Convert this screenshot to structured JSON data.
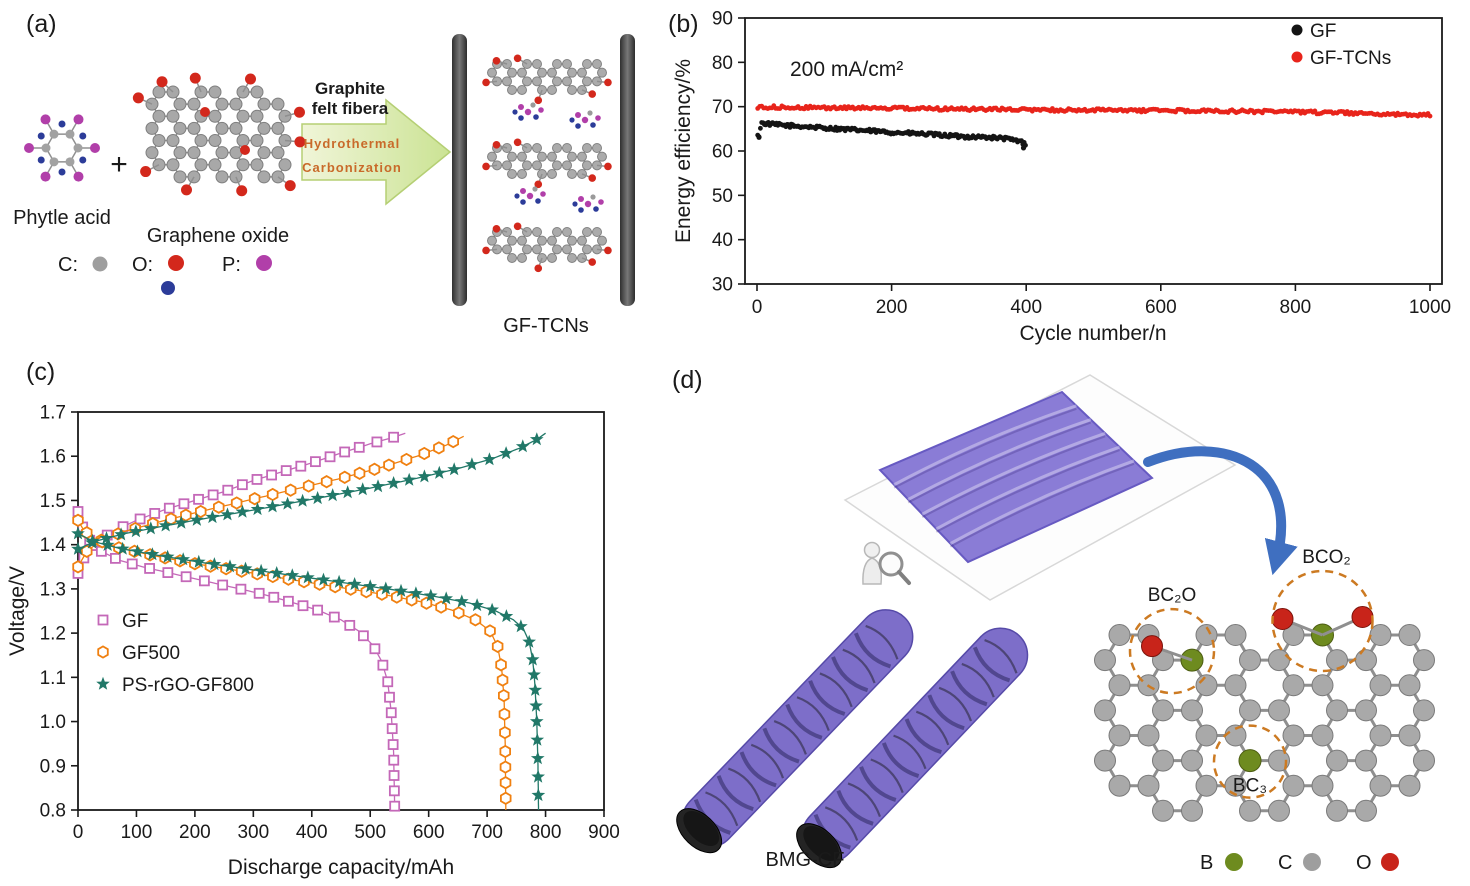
{
  "panel_a": {
    "label": "(a)",
    "reactant1_label": "Phytle acid",
    "plus": "+",
    "reactant2_label": "Graphene oxide",
    "arrow_caption_line1": "Graphite",
    "arrow_caption_line2": "felt fibera",
    "arrow_step1": "Hydrothermal",
    "arrow_step2": "Carbonization",
    "product_label": "GF-TCNs",
    "atom_legend": {
      "c_label": "C:",
      "c_color": "#9e9e9e",
      "o_label": "O:",
      "o_color": "#d3281c",
      "o_color2": "#2c3c99",
      "p_label": "P:",
      "p_color": "#b13fa9"
    }
  },
  "panel_d": {
    "label": "(d)",
    "object_label": "BMG-CF",
    "site1": "BC₂O",
    "site2": "BCO₂",
    "site3": "BC₃",
    "atom_legend": {
      "b_label": "B",
      "b_color": "#6e8b1f",
      "c_label": "C",
      "c_color": "#9e9e9e",
      "o_label": "O",
      "o_color": "#c8241a"
    }
  },
  "chart_data": [
    {
      "id": "b",
      "panel_label": "(b)",
      "type": "scatter",
      "xlabel": "Cycle number/n",
      "ylabel": "Energy efficiency/%",
      "annotation": "200 mA/cm²",
      "xlim": [
        0,
        1000
      ],
      "ylim": [
        30,
        90
      ],
      "xticks": [
        "0",
        "200",
        "400",
        "600",
        "800",
        "1000"
      ],
      "yticks": [
        "30",
        "40",
        "50",
        "60",
        "70",
        "80",
        "90"
      ],
      "grid": false,
      "legend_position": "top-right",
      "series": [
        {
          "name": "GF",
          "color": "#141414",
          "marker": "circle",
          "point_step": 2,
          "scatter_band": 0.8,
          "trend": [
            [
              1,
              63.3
            ],
            [
              3,
              63.5
            ],
            [
              6,
              66.3
            ],
            [
              30,
              65.9
            ],
            [
              60,
              65.6
            ],
            [
              100,
              65.2
            ],
            [
              150,
              64.7
            ],
            [
              200,
              64.2
            ],
            [
              250,
              63.8
            ],
            [
              300,
              63.3
            ],
            [
              340,
              63.1
            ],
            [
              370,
              62.8
            ],
            [
              390,
              62.2
            ],
            [
              400,
              61.6
            ]
          ],
          "extra_points": [
            [
              3,
              63.1
            ],
            [
              396,
              60.7
            ]
          ]
        },
        {
          "name": "GF-TCNs",
          "color": "#e8241b",
          "marker": "circle",
          "point_step": 3,
          "scatter_band": 0.7,
          "trend": [
            [
              1,
              69.9
            ],
            [
              100,
              69.8
            ],
            [
              200,
              69.6
            ],
            [
              300,
              69.5
            ],
            [
              400,
              69.3
            ],
            [
              500,
              69.2
            ],
            [
              600,
              69.1
            ],
            [
              700,
              69.0
            ],
            [
              800,
              68.8
            ],
            [
              900,
              68.5
            ],
            [
              1000,
              68.1
            ]
          ],
          "extra_points": []
        }
      ]
    },
    {
      "id": "c",
      "panel_label": "(c)",
      "type": "line",
      "xlabel": "Discharge capacity/mAh",
      "ylabel": "Voltage/V",
      "xlim": [
        0,
        900
      ],
      "ylim": [
        0.8,
        1.7
      ],
      "xticks": [
        "0",
        "100",
        "200",
        "300",
        "400",
        "500",
        "600",
        "700",
        "800",
        "900"
      ],
      "yticks": [
        "0.8",
        "0.9",
        "1.0",
        "1.1",
        "1.2",
        "1.3",
        "1.4",
        "1.5",
        "1.6",
        "1.7"
      ],
      "grid": false,
      "legend_position": "center-left",
      "series": [
        {
          "name": "GF",
          "color": "#c468b8",
          "marker": "square",
          "charge": [
            [
              0,
              1.335
            ],
            [
              10,
              1.37
            ],
            [
              30,
              1.405
            ],
            [
              60,
              1.43
            ],
            [
              100,
              1.455
            ],
            [
              150,
              1.48
            ],
            [
              200,
              1.5
            ],
            [
              250,
              1.52
            ],
            [
              300,
              1.545
            ],
            [
              350,
              1.565
            ],
            [
              400,
              1.585
            ],
            [
              450,
              1.607
            ],
            [
              500,
              1.628
            ],
            [
              540,
              1.643
            ],
            [
              560,
              1.652
            ]
          ],
          "discharge": [
            [
              0,
              1.475
            ],
            [
              8,
              1.44
            ],
            [
              20,
              1.41
            ],
            [
              40,
              1.385
            ],
            [
              70,
              1.365
            ],
            [
              110,
              1.35
            ],
            [
              160,
              1.335
            ],
            [
              210,
              1.32
            ],
            [
              260,
              1.305
            ],
            [
              310,
              1.29
            ],
            [
              360,
              1.272
            ],
            [
              410,
              1.252
            ],
            [
              450,
              1.23
            ],
            [
              480,
              1.205
            ],
            [
              505,
              1.172
            ],
            [
              520,
              1.135
            ],
            [
              530,
              1.09
            ],
            [
              536,
              1.02
            ],
            [
              540,
              0.93
            ],
            [
              542,
              0.8
            ]
          ]
        },
        {
          "name": "GF500",
          "color": "#f08010",
          "marker": "hexagon",
          "charge": [
            [
              0,
              1.35
            ],
            [
              15,
              1.385
            ],
            [
              40,
              1.41
            ],
            [
              80,
              1.43
            ],
            [
              140,
              1.452
            ],
            [
              210,
              1.475
            ],
            [
              290,
              1.5
            ],
            [
              370,
              1.525
            ],
            [
              450,
              1.55
            ],
            [
              520,
              1.575
            ],
            [
              580,
              1.6
            ],
            [
              630,
              1.625
            ],
            [
              660,
              1.645
            ]
          ],
          "discharge": [
            [
              0,
              1.455
            ],
            [
              10,
              1.432
            ],
            [
              30,
              1.412
            ],
            [
              70,
              1.393
            ],
            [
              130,
              1.375
            ],
            [
              200,
              1.357
            ],
            [
              280,
              1.34
            ],
            [
              360,
              1.322
            ],
            [
              440,
              1.305
            ],
            [
              520,
              1.288
            ],
            [
              590,
              1.27
            ],
            [
              640,
              1.252
            ],
            [
              680,
              1.23
            ],
            [
              705,
              1.205
            ],
            [
              718,
              1.17
            ],
            [
              725,
              1.12
            ],
            [
              729,
              1.05
            ],
            [
              731,
              0.95
            ],
            [
              732,
              0.8
            ]
          ]
        },
        {
          "name": "PS-rGO-GF800",
          "color": "#217868",
          "marker": "star",
          "charge": [
            [
              0,
              1.39
            ],
            [
              30,
              1.408
            ],
            [
              80,
              1.425
            ],
            [
              150,
              1.443
            ],
            [
              230,
              1.462
            ],
            [
              320,
              1.483
            ],
            [
              410,
              1.505
            ],
            [
              500,
              1.528
            ],
            [
              580,
              1.55
            ],
            [
              650,
              1.572
            ],
            [
              710,
              1.595
            ],
            [
              755,
              1.618
            ],
            [
              785,
              1.638
            ],
            [
              800,
              1.652
            ]
          ],
          "discharge": [
            [
              0,
              1.425
            ],
            [
              25,
              1.408
            ],
            [
              70,
              1.392
            ],
            [
              140,
              1.375
            ],
            [
              220,
              1.358
            ],
            [
              300,
              1.343
            ],
            [
              380,
              1.328
            ],
            [
              460,
              1.313
            ],
            [
              540,
              1.298
            ],
            [
              610,
              1.283
            ],
            [
              670,
              1.268
            ],
            [
              715,
              1.25
            ],
            [
              745,
              1.23
            ],
            [
              762,
              1.21
            ],
            [
              772,
              1.18
            ],
            [
              778,
              1.14
            ],
            [
              782,
              1.08
            ],
            [
              785,
              1.0
            ],
            [
              787,
              0.9
            ],
            [
              788,
              0.8
            ]
          ]
        }
      ]
    }
  ]
}
